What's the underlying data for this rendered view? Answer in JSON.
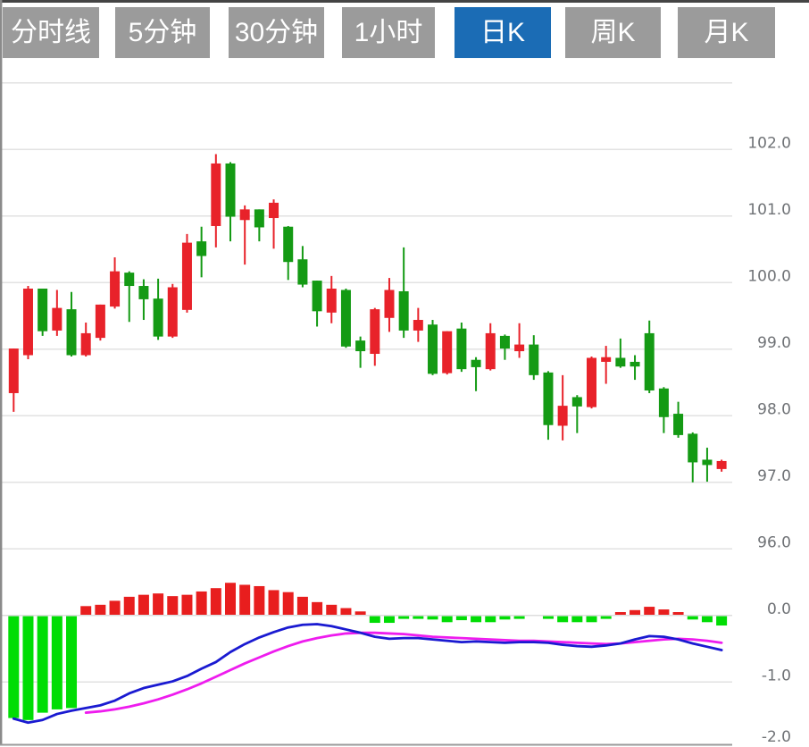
{
  "tabs": {
    "items": [
      {
        "id": "tab-timeshare",
        "label": "分时线",
        "active": false
      },
      {
        "id": "tab-5min",
        "label": "5分钟",
        "active": false
      },
      {
        "id": "tab-30min",
        "label": "30分钟",
        "active": false
      },
      {
        "id": "tab-1hour",
        "label": "1小时",
        "active": false
      },
      {
        "id": "tab-daily-k",
        "label": "日K",
        "active": true
      },
      {
        "id": "tab-weekly-k",
        "label": "周K",
        "active": false
      },
      {
        "id": "tab-monthly-k",
        "label": "月K",
        "active": false
      }
    ]
  },
  "colors": {
    "up": "#e8222a",
    "down": "#149a14",
    "macd_up": "#e81e1e",
    "macd_down": "#00dd04",
    "dif_line": "#1a1ad1",
    "dea_line": "#ee1cee",
    "grid": "#e2e2e2",
    "zero_line": "#dedede",
    "border_top": "#444444",
    "border_left": "#8a8a8a",
    "border_bottom": "#9a9a9a",
    "axis_label": "#6f7276",
    "tab_bg": "#9b9b9b",
    "tab_active_bg": "#1b6cb5",
    "tab_text": "#ffffff"
  },
  "chart_data": {
    "type": "candlestick",
    "title": "",
    "legend_position": "none",
    "grid": true,
    "price_pane": {
      "ylim": [
        96,
        103
      ],
      "tick_values": [
        102,
        101,
        100,
        99,
        98,
        97,
        96
      ],
      "tick_labels": [
        "102.0",
        "101.0",
        "100.0",
        "99.0",
        "98.0",
        "97.0",
        "96.0"
      ],
      "grid_top_value": 103
    },
    "candles_ohlc": [
      [
        98.34,
        99.01,
        98.06,
        99.01
      ],
      [
        98.91,
        99.95,
        98.85,
        99.91
      ],
      [
        99.91,
        99.91,
        99.2,
        99.27
      ],
      [
        99.28,
        99.89,
        99.2,
        99.62
      ],
      [
        99.6,
        99.86,
        98.89,
        98.91
      ],
      [
        98.91,
        99.4,
        98.89,
        99.24
      ],
      [
        99.17,
        99.67,
        99.13,
        99.67
      ],
      [
        99.64,
        100.38,
        99.61,
        100.17
      ],
      [
        100.15,
        100.17,
        99.41,
        99.95
      ],
      [
        99.95,
        100.05,
        99.44,
        99.75
      ],
      [
        99.76,
        100.06,
        99.14,
        99.19
      ],
      [
        99.19,
        99.98,
        99.17,
        99.93
      ],
      [
        99.59,
        100.73,
        99.55,
        100.6
      ],
      [
        100.62,
        100.84,
        100.08,
        100.4
      ],
      [
        100.85,
        101.93,
        100.53,
        101.79
      ],
      [
        101.79,
        101.81,
        100.62,
        100.99
      ],
      [
        100.94,
        101.16,
        100.27,
        101.1
      ],
      [
        101.1,
        101.1,
        100.62,
        100.83
      ],
      [
        100.97,
        101.25,
        100.51,
        101.2
      ],
      [
        100.84,
        100.85,
        100.04,
        100.31
      ],
      [
        100.35,
        100.55,
        99.93,
        99.97
      ],
      [
        100.03,
        100.03,
        99.34,
        99.57
      ],
      [
        99.55,
        100.1,
        99.39,
        99.91
      ],
      [
        99.89,
        99.91,
        99.02,
        99.04
      ],
      [
        99.13,
        99.19,
        98.72,
        98.97
      ],
      [
        98.93,
        99.62,
        98.75,
        99.6
      ],
      [
        99.47,
        100.07,
        99.26,
        99.89
      ],
      [
        99.87,
        100.53,
        99.17,
        99.28
      ],
      [
        99.28,
        99.62,
        99.11,
        99.44
      ],
      [
        99.37,
        99.44,
        98.61,
        98.63
      ],
      [
        98.64,
        99.27,
        98.62,
        99.27
      ],
      [
        99.31,
        99.4,
        98.66,
        98.7
      ],
      [
        98.84,
        98.88,
        98.37,
        98.73
      ],
      [
        98.7,
        99.39,
        98.68,
        99.24
      ],
      [
        99.2,
        99.22,
        98.84,
        99.01
      ],
      [
        98.97,
        99.39,
        98.87,
        99.07
      ],
      [
        99.07,
        99.21,
        98.54,
        98.61
      ],
      [
        98.65,
        98.67,
        97.64,
        97.86
      ],
      [
        97.85,
        98.61,
        97.63,
        98.15
      ],
      [
        98.28,
        98.31,
        97.74,
        98.14
      ],
      [
        98.13,
        98.89,
        98.11,
        98.87
      ],
      [
        98.81,
        99.05,
        98.48,
        98.88
      ],
      [
        98.87,
        99.16,
        98.72,
        98.74
      ],
      [
        98.81,
        98.91,
        98.54,
        98.74
      ],
      [
        99.24,
        99.43,
        98.34,
        98.38
      ],
      [
        98.41,
        98.43,
        97.74,
        97.98
      ],
      [
        98.03,
        98.21,
        97.67,
        97.71
      ],
      [
        97.73,
        97.75,
        97.0,
        97.3
      ],
      [
        97.34,
        97.52,
        97.01,
        97.26
      ],
      [
        97.2,
        97.34,
        97.16,
        97.32
      ]
    ],
    "macd_pane": {
      "ylim": [
        -2,
        0.6
      ],
      "tick_values": [
        0,
        -1,
        -2
      ],
      "tick_labels": [
        "0.0",
        "-1.0",
        "-2.0"
      ],
      "histogram": [
        -1.53,
        -1.56,
        -1.45,
        -1.4,
        -1.38,
        0.13,
        0.15,
        0.21,
        0.27,
        0.3,
        0.32,
        0.28,
        0.3,
        0.35,
        0.4,
        0.48,
        0.45,
        0.43,
        0.37,
        0.34,
        0.27,
        0.19,
        0.15,
        0.1,
        0.05,
        -0.1,
        -0.1,
        -0.04,
        -0.04,
        -0.05,
        -0.09,
        -0.06,
        -0.09,
        -0.09,
        -0.05,
        -0.04,
        0,
        -0.04,
        -0.09,
        -0.09,
        -0.09,
        -0.04,
        0.04,
        0.07,
        0.12,
        0.08,
        0.03,
        -0.05,
        -0.09,
        -0.14
      ],
      "dif": [
        -1.55,
        -1.61,
        -1.57,
        -1.48,
        -1.43,
        -1.39,
        -1.35,
        -1.28,
        -1.17,
        -1.09,
        -1.04,
        -0.99,
        -0.91,
        -0.8,
        -0.7,
        -0.55,
        -0.43,
        -0.33,
        -0.25,
        -0.18,
        -0.14,
        -0.13,
        -0.16,
        -0.21,
        -0.26,
        -0.32,
        -0.35,
        -0.34,
        -0.34,
        -0.36,
        -0.38,
        -0.4,
        -0.39,
        -0.4,
        -0.41,
        -0.4,
        -0.4,
        -0.41,
        -0.44,
        -0.46,
        -0.47,
        -0.45,
        -0.42,
        -0.36,
        -0.31,
        -0.32,
        -0.36,
        -0.42,
        -0.47,
        -0.52
      ],
      "dea": [
        null,
        null,
        null,
        null,
        null,
        -1.46,
        -1.44,
        -1.41,
        -1.37,
        -1.32,
        -1.26,
        -1.19,
        -1.11,
        -1.02,
        -0.92,
        -0.82,
        -0.72,
        -0.63,
        -0.54,
        -0.46,
        -0.39,
        -0.34,
        -0.3,
        -0.27,
        -0.26,
        -0.26,
        -0.27,
        -0.28,
        -0.3,
        -0.32,
        -0.33,
        -0.34,
        -0.35,
        -0.36,
        -0.37,
        -0.38,
        -0.38,
        -0.39,
        -0.4,
        -0.41,
        -0.42,
        -0.43,
        -0.42,
        -0.4,
        -0.38,
        -0.36,
        -0.35,
        -0.36,
        -0.38,
        -0.41
      ]
    }
  }
}
